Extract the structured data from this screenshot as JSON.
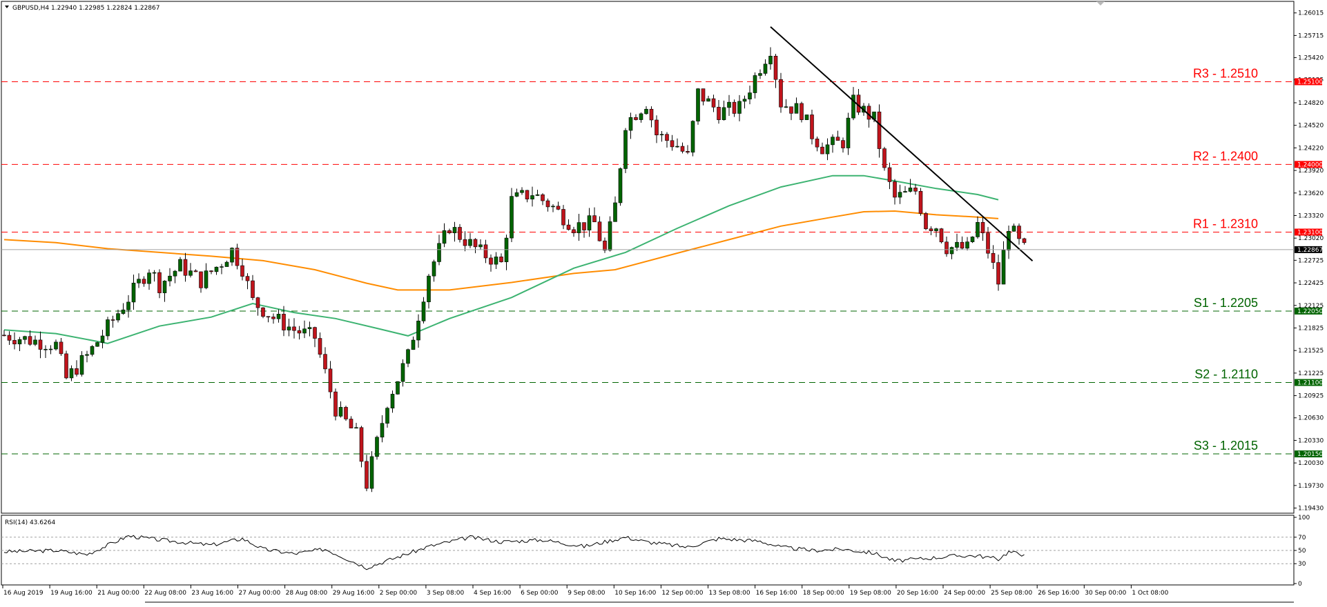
{
  "chart_data": {
    "type": "candlestick",
    "symbol_header": {
      "symbol": "GBPUSD,H4",
      "open": "1.22940",
      "high": "1.22985",
      "low": "1.22824",
      "close": "1.22867"
    },
    "current_price": 1.22867,
    "current_price_label": "1.22867",
    "y_range": [
      1.1938,
      1.2615
    ],
    "y_ticks": [
      "1.26015",
      "1.25715",
      "1.25420",
      "1.25125",
      "1.24820",
      "1.24520",
      "1.24220",
      "1.23920",
      "1.23620",
      "1.23320",
      "1.23020",
      "1.22725",
      "1.22425",
      "1.22125",
      "1.21825",
      "1.21525",
      "1.21225",
      "1.20925",
      "1.20630",
      "1.20330",
      "1.20030",
      "1.19730",
      "1.19430"
    ],
    "x_tick_labels": [
      "16 Aug 2019",
      "19 Aug 16:00",
      "21 Aug 00:00",
      "22 Aug 08:00",
      "23 Aug 16:00",
      "27 Aug 00:00",
      "28 Aug 08:00",
      "29 Aug 16:00",
      "2 Sep 00:00",
      "3 Sep 08:00",
      "4 Sep 16:00",
      "6 Sep 00:00",
      "9 Sep 08:00",
      "10 Sep 16:00",
      "12 Sep 00:00",
      "13 Sep 08:00",
      "16 Sep 16:00",
      "18 Sep 00:00",
      "19 Sep 08:00",
      "20 Sep 16:00",
      "24 Sep 00:00",
      "25 Sep 08:00",
      "26 Sep 16:00",
      "30 Sep 00:00",
      "1 Oct 08:00"
    ],
    "levels": [
      {
        "name": "R3 - 1.2510",
        "value": 1.251,
        "tag": "1.25100",
        "kind": "resistance"
      },
      {
        "name": "R2 - 1.2400",
        "value": 1.24,
        "tag": "1.24000",
        "kind": "resistance"
      },
      {
        "name": "R1 - 1.2310",
        "value": 1.231,
        "tag": "1.23100",
        "kind": "resistance"
      },
      {
        "name": "S1 - 1.2205",
        "value": 1.2205,
        "tag": "1.22050",
        "kind": "support"
      },
      {
        "name": "S2 - 1.2110",
        "value": 1.211,
        "tag": "1.21100",
        "kind": "support"
      },
      {
        "name": "S3 - 1.2015",
        "value": 1.2015,
        "tag": "1.20150",
        "kind": "support"
      }
    ],
    "trendline": {
      "start_bar": 148,
      "start_price": 1.2583,
      "end_bar": 197,
      "end_price": 1.2279
    },
    "close_path": [
      [
        0,
        1.2173
      ],
      [
        10,
        1.216
      ],
      [
        12,
        1.2115
      ],
      [
        16,
        1.2145
      ],
      [
        24,
        1.2222
      ],
      [
        28,
        1.2262
      ],
      [
        30,
        1.224
      ],
      [
        34,
        1.2265
      ],
      [
        38,
        1.2245
      ],
      [
        42,
        1.227
      ],
      [
        44,
        1.2286
      ],
      [
        46,
        1.2262
      ],
      [
        48,
        1.2218
      ],
      [
        52,
        1.2196
      ],
      [
        56,
        1.218
      ],
      [
        60,
        1.217
      ],
      [
        64,
        1.2075
      ],
      [
        68,
        1.204
      ],
      [
        70,
        1.1975
      ],
      [
        74,
        1.2085
      ],
      [
        78,
        1.2145
      ],
      [
        82,
        1.2255
      ],
      [
        86,
        1.2318
      ],
      [
        88,
        1.2305
      ],
      [
        92,
        1.2283
      ],
      [
        96,
        1.2268
      ],
      [
        98,
        1.2352
      ],
      [
        102,
        1.2362
      ],
      [
        106,
        1.2343
      ],
      [
        110,
        1.2318
      ],
      [
        114,
        1.2322
      ],
      [
        116,
        1.2283
      ],
      [
        118,
        1.2345
      ],
      [
        120,
        1.2455
      ],
      [
        124,
        1.2482
      ],
      [
        126,
        1.244
      ],
      [
        130,
        1.2425
      ],
      [
        132,
        1.241
      ],
      [
        134,
        1.2495
      ],
      [
        138,
        1.247
      ],
      [
        142,
        1.2475
      ],
      [
        146,
        1.253
      ],
      [
        148,
        1.2555
      ],
      [
        150,
        1.2482
      ],
      [
        154,
        1.247
      ],
      [
        156,
        1.244
      ],
      [
        158,
        1.2423
      ],
      [
        162,
        1.243
      ],
      [
        164,
        1.2482
      ],
      [
        168,
        1.246
      ],
      [
        170,
        1.239
      ],
      [
        172,
        1.2355
      ],
      [
        176,
        1.2365
      ],
      [
        178,
        1.232
      ],
      [
        180,
        1.2318
      ],
      [
        182,
        1.229
      ],
      [
        186,
        1.2288
      ],
      [
        188,
        1.232
      ],
      [
        190,
        1.2285
      ],
      [
        192,
        1.2243
      ],
      [
        194,
        1.232
      ],
      [
        196,
        1.2295
      ],
      [
        197,
        1.22867
      ]
    ],
    "ma_green": [
      [
        0,
        1.218
      ],
      [
        10,
        1.2175
      ],
      [
        20,
        1.2162
      ],
      [
        30,
        1.2185
      ],
      [
        40,
        1.2197
      ],
      [
        48,
        1.2215
      ],
      [
        56,
        1.2203
      ],
      [
        64,
        1.2195
      ],
      [
        72,
        1.2182
      ],
      [
        78,
        1.2172
      ],
      [
        86,
        1.2195
      ],
      [
        98,
        1.2223
      ],
      [
        110,
        1.2262
      ],
      [
        120,
        1.2283
      ],
      [
        130,
        1.2315
      ],
      [
        140,
        1.2345
      ],
      [
        150,
        1.237
      ],
      [
        160,
        1.2385
      ],
      [
        166,
        1.2385
      ],
      [
        172,
        1.2378
      ],
      [
        180,
        1.2368
      ],
      [
        188,
        1.236
      ],
      [
        192,
        1.2353
      ]
    ],
    "ma_orange": [
      [
        0,
        1.23
      ],
      [
        10,
        1.2296
      ],
      [
        20,
        1.2288
      ],
      [
        30,
        1.2283
      ],
      [
        40,
        1.2278
      ],
      [
        50,
        1.2272
      ],
      [
        60,
        1.226
      ],
      [
        70,
        1.2242
      ],
      [
        76,
        1.2233
      ],
      [
        86,
        1.2233
      ],
      [
        98,
        1.2243
      ],
      [
        110,
        1.2255
      ],
      [
        118,
        1.226
      ],
      [
        130,
        1.2282
      ],
      [
        140,
        1.23
      ],
      [
        150,
        1.2318
      ],
      [
        160,
        1.233
      ],
      [
        166,
        1.2337
      ],
      [
        172,
        1.2338
      ],
      [
        180,
        1.2333
      ],
      [
        188,
        1.233
      ],
      [
        192,
        1.2328
      ]
    ],
    "rsi": {
      "label": "RSI(14) 43.6264",
      "ticks": [
        "100",
        "70",
        "50",
        "30",
        "0"
      ],
      "levels": [
        70,
        50,
        30
      ],
      "path": [
        [
          0,
          48
        ],
        [
          10,
          50
        ],
        [
          16,
          44
        ],
        [
          24,
          72
        ],
        [
          30,
          66
        ],
        [
          40,
          58
        ],
        [
          46,
          68
        ],
        [
          50,
          52
        ],
        [
          56,
          45
        ],
        [
          62,
          52
        ],
        [
          66,
          38
        ],
        [
          70,
          24
        ],
        [
          76,
          40
        ],
        [
          82,
          56
        ],
        [
          90,
          70
        ],
        [
          96,
          63
        ],
        [
          104,
          66
        ],
        [
          112,
          56
        ],
        [
          120,
          70
        ],
        [
          124,
          63
        ],
        [
          132,
          55
        ],
        [
          138,
          68
        ],
        [
          146,
          64
        ],
        [
          150,
          55
        ],
        [
          156,
          50
        ],
        [
          162,
          52
        ],
        [
          168,
          46
        ],
        [
          172,
          34
        ],
        [
          178,
          38
        ],
        [
          184,
          42
        ],
        [
          188,
          42
        ],
        [
          192,
          37
        ],
        [
          194,
          48
        ],
        [
          197,
          43.6
        ]
      ]
    }
  }
}
